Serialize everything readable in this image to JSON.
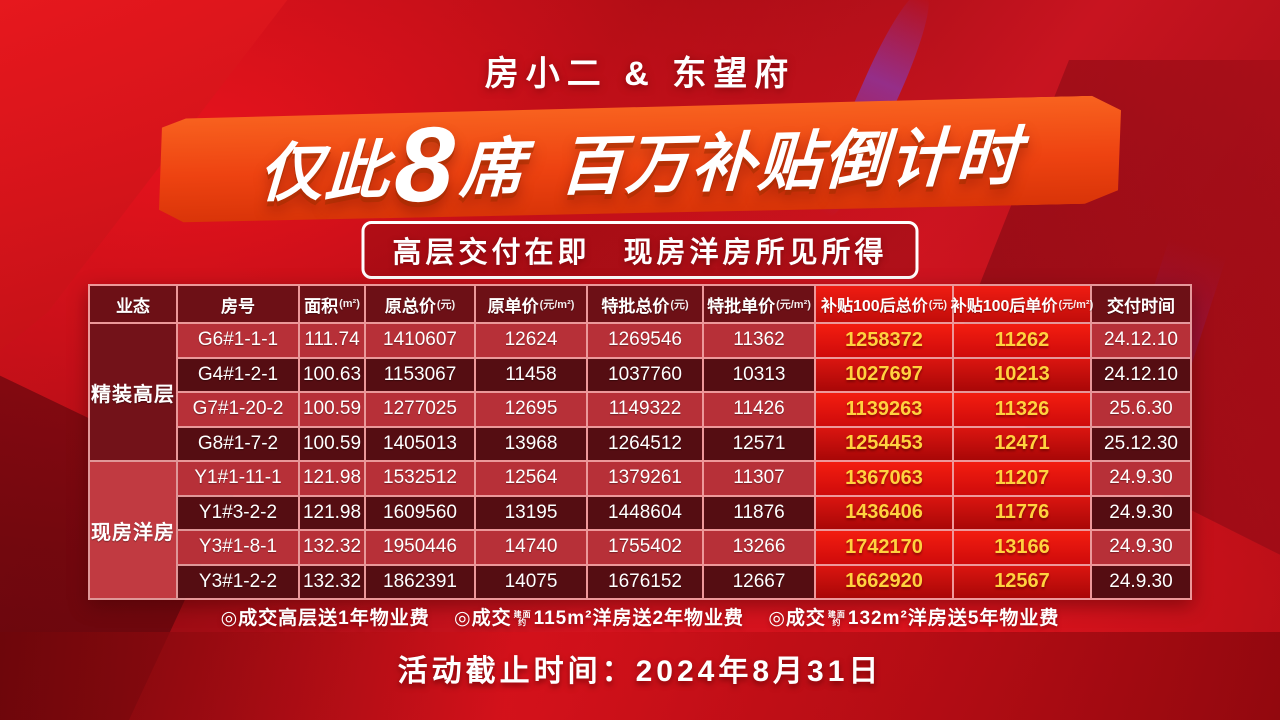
{
  "header": {
    "brand": "房小二 & 东望府",
    "headline": {
      "pre": "仅此",
      "big": "8",
      "mid": "席",
      "tail": "百万补贴倒计时"
    },
    "subheadline": "高层交付在即　现房洋房所见所得"
  },
  "table": {
    "columns": [
      {
        "label": "业态",
        "unit": ""
      },
      {
        "label": "房号",
        "unit": ""
      },
      {
        "label": "面积",
        "unit": "(m²)"
      },
      {
        "label": "原总价",
        "unit": "(元)"
      },
      {
        "label": "原单价",
        "unit": "(元/m²)"
      },
      {
        "label": "特批总价",
        "unit": "(元)"
      },
      {
        "label": "特批单价",
        "unit": "(元/m²)"
      },
      {
        "label": "补贴100后总价",
        "unit": "(元)",
        "hot": true
      },
      {
        "label": "补贴100后单价",
        "unit": "(元/m²)",
        "hot": true
      },
      {
        "label": "交付时间",
        "unit": ""
      }
    ],
    "groups": [
      {
        "label": "精装高层",
        "start": 0,
        "count": 4
      },
      {
        "label": "现房洋房",
        "start": 4,
        "count": 4
      }
    ],
    "rows": [
      [
        "G6#1-1-1",
        "111.74",
        "1410607",
        "12624",
        "1269546",
        "11362",
        "1258372",
        "11262",
        "24.12.10"
      ],
      [
        "G4#1-2-1",
        "100.63",
        "1153067",
        "11458",
        "1037760",
        "10313",
        "1027697",
        "10213",
        "24.12.10"
      ],
      [
        "G7#1-20-2",
        "100.59",
        "1277025",
        "12695",
        "1149322",
        "11426",
        "1139263",
        "11326",
        "25.6.30"
      ],
      [
        "G8#1-7-2",
        "100.59",
        "1405013",
        "13968",
        "1264512",
        "12571",
        "1254453",
        "12471",
        "25.12.30"
      ],
      [
        "Y1#1-11-1",
        "121.98",
        "1532512",
        "12564",
        "1379261",
        "11307",
        "1367063",
        "11207",
        "24.9.30"
      ],
      [
        "Y1#3-2-2",
        "121.98",
        "1609560",
        "13195",
        "1448604",
        "11876",
        "1436406",
        "11776",
        "24.9.30"
      ],
      [
        "Y3#1-8-1",
        "132.32",
        "1950446",
        "14740",
        "1755402",
        "13266",
        "1742170",
        "13166",
        "24.9.30"
      ],
      [
        "Y3#1-2-2",
        "132.32",
        "1862391",
        "14075",
        "1676152",
        "12667",
        "1662920",
        "12567",
        "24.9.30"
      ]
    ]
  },
  "notes": [
    {
      "text": "◎成交高层送1年物业费"
    },
    {
      "pre": "◎成交",
      "tiny": [
        "建面",
        "约"
      ],
      "post": "115m²洋房送2年物业费"
    },
    {
      "pre": "◎成交",
      "tiny": [
        "建面",
        "约"
      ],
      "post": "132m²洋房送5年物业费"
    }
  ],
  "footer": {
    "deadline": "活动截止时间：2024年8月31日"
  },
  "colors": {
    "banner_orange": "#ee4311",
    "hot_red": "#e3120d",
    "gold": "#ffd23f",
    "header_maroon": "#6d1016",
    "row_light": "#b73038",
    "row_dark": "#550d12",
    "group_dark": "#731219",
    "group_light": "#c13a41",
    "background_red": "#b30f18"
  }
}
